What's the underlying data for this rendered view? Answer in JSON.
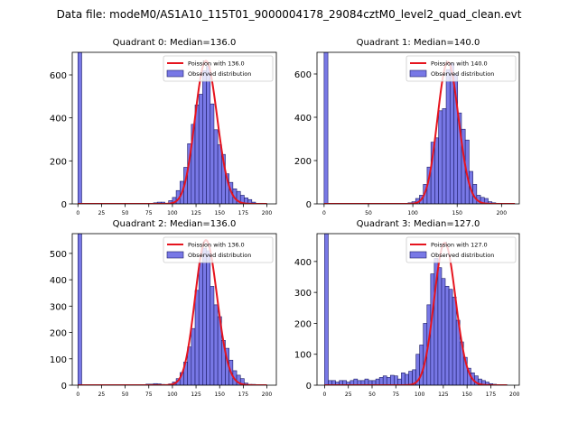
{
  "figure": {
    "suptitle": "Data file: modeM0/AS1A10_115T01_9000004178_29084cztM0_level2_quad_clean.evt"
  },
  "colors": {
    "hist_fill": "#7878e6",
    "hist_edge": "#1a1a66",
    "fit_line": "#e6141e"
  },
  "chart_data": [
    {
      "type": "bar",
      "title": "Quadrant 0: Median=136.0",
      "xlim": [
        -6,
        210
      ],
      "ylim": [
        0,
        705
      ],
      "xticks": [
        0,
        25,
        50,
        75,
        100,
        125,
        150,
        175,
        200
      ],
      "yticks": [
        0,
        200,
        400,
        600
      ],
      "legend": {
        "location": "top-right",
        "line_label": "Poission with 136.0",
        "bar_label": "Observed distribution"
      },
      "series": [
        {
          "name": "Observed distribution",
          "bin_edges": [
            0,
            4,
            8,
            12,
            16,
            20,
            24,
            28,
            32,
            36,
            40,
            44,
            48,
            52,
            56,
            60,
            64,
            68,
            72,
            76,
            80,
            84,
            88,
            92,
            96,
            100,
            104,
            108,
            112,
            116,
            120,
            124,
            128,
            132,
            136,
            140,
            144,
            148,
            152,
            156,
            160,
            164,
            168,
            172,
            176,
            180,
            184,
            188,
            192,
            196,
            200
          ],
          "counts": [
            705,
            0,
            0,
            0,
            0,
            0,
            0,
            0,
            0,
            0,
            0,
            0,
            0,
            0,
            0,
            0,
            0,
            0,
            0,
            0,
            5,
            8,
            8,
            3,
            15,
            30,
            62,
            105,
            170,
            280,
            370,
            460,
            510,
            620,
            640,
            465,
            345,
            275,
            230,
            140,
            100,
            70,
            58,
            40,
            28,
            20,
            8,
            3,
            3,
            1
          ]
        },
        {
          "name": "Poission with 136.0",
          "lambda": 136.0,
          "peak": 665,
          "x_range": [
            0,
            200
          ]
        }
      ]
    },
    {
      "type": "bar",
      "title": "Quadrant 1: Median=140.0",
      "xlim": [
        -8,
        220
      ],
      "ylim": [
        0,
        700
      ],
      "xticks": [
        0,
        50,
        100,
        150,
        200
      ],
      "yticks": [
        0,
        200,
        400,
        600
      ],
      "legend": {
        "location": "top-right",
        "line_label": "Poission with 140.0",
        "bar_label": "Observed distribution"
      },
      "series": [
        {
          "name": "Observed distribution",
          "bin_edges": [
            0,
            4.3,
            8.6,
            12.9,
            17.2,
            21.5,
            25.8,
            30.1,
            34.4,
            38.7,
            43,
            47.3,
            51.6,
            55.9,
            60.2,
            64.5,
            68.8,
            73.1,
            77.4,
            81.7,
            86,
            90.3,
            94.6,
            98.9,
            103.2,
            107.5,
            111.8,
            116.1,
            120.4,
            124.7,
            129,
            133.3,
            137.6,
            141.9,
            146.2,
            150.5,
            154.8,
            159.1,
            163.4,
            167.7,
            172,
            176.3,
            180.6,
            184.9,
            189.2,
            193.5,
            197.8,
            202.1,
            206.4,
            210.7,
            215
          ],
          "counts": [
            700,
            0,
            0,
            0,
            0,
            0,
            0,
            0,
            0,
            0,
            0,
            0,
            0,
            0,
            0,
            0,
            0,
            0,
            0,
            0,
            0,
            2,
            5,
            10,
            25,
            40,
            90,
            170,
            285,
            305,
            430,
            440,
            620,
            650,
            600,
            420,
            345,
            295,
            150,
            90,
            40,
            30,
            25,
            10,
            5,
            3,
            2,
            1,
            1,
            1
          ]
        },
        {
          "name": "Poission with 140.0",
          "lambda": 140.0,
          "peak": 655,
          "x_range": [
            0,
            215
          ]
        }
      ]
    },
    {
      "type": "bar",
      "title": "Quadrant 2: Median=136.0",
      "xlim": [
        -6,
        210
      ],
      "ylim": [
        0,
        575
      ],
      "xticks": [
        0,
        25,
        50,
        75,
        100,
        125,
        150,
        175,
        200
      ],
      "yticks": [
        0,
        100,
        200,
        300,
        400,
        500
      ],
      "legend": {
        "location": "top-right",
        "line_label": "Poission with 136.0",
        "bar_label": "Observed distribution"
      },
      "series": [
        {
          "name": "Observed distribution",
          "bin_edges": [
            0,
            4,
            8,
            12,
            16,
            20,
            24,
            28,
            32,
            36,
            40,
            44,
            48,
            52,
            56,
            60,
            64,
            68,
            72,
            76,
            80,
            84,
            88,
            92,
            96,
            100,
            104,
            108,
            112,
            116,
            120,
            124,
            128,
            132,
            136,
            140,
            144,
            148,
            152,
            156,
            160,
            164,
            168,
            172,
            176,
            180,
            184,
            188,
            192,
            196,
            200
          ],
          "counts": [
            575,
            0,
            0,
            0,
            0,
            0,
            0,
            0,
            0,
            0,
            0,
            0,
            0,
            0,
            0,
            0,
            0,
            0,
            4,
            4,
            6,
            5,
            3,
            2,
            5,
            12,
            25,
            48,
            88,
            145,
            215,
            360,
            465,
            520,
            510,
            375,
            305,
            260,
            170,
            140,
            95,
            55,
            38,
            25,
            8,
            3,
            3,
            1,
            1,
            0
          ]
        },
        {
          "name": "Poission with 136.0",
          "lambda": 136.0,
          "peak": 550,
          "x_range": [
            0,
            200
          ]
        }
      ]
    },
    {
      "type": "bar",
      "title": "Quadrant 3: Median=127.0",
      "xlim": [
        -8,
        205
      ],
      "ylim": [
        0,
        490
      ],
      "xticks": [
        0,
        25,
        50,
        75,
        100,
        125,
        150,
        175,
        200
      ],
      "yticks": [
        0,
        100,
        200,
        300,
        400
      ],
      "legend": {
        "location": "top-right",
        "line_label": "Poission with 127.0",
        "bar_label": "Observed distribution"
      },
      "series": [
        {
          "name": "Observed distribution",
          "bin_edges": [
            0,
            3.85,
            7.7,
            11.55,
            15.4,
            19.25,
            23.1,
            26.95,
            30.8,
            34.65,
            38.5,
            42.35,
            46.2,
            50.05,
            53.9,
            57.75,
            61.6,
            65.45,
            69.3,
            73.15,
            77,
            80.85,
            84.7,
            88.55,
            92.4,
            96.25,
            100.1,
            103.95,
            107.8,
            111.65,
            115.5,
            119.35,
            123.2,
            127.05,
            130.9,
            134.75,
            138.6,
            142.45,
            146.3,
            150.15,
            154,
            157.85,
            161.7,
            165.55,
            169.4,
            173.25,
            177.1,
            180.95,
            184.8,
            188.65,
            192.5
          ],
          "counts": [
            490,
            15,
            15,
            10,
            15,
            15,
            10,
            15,
            20,
            15,
            15,
            20,
            15,
            15,
            20,
            25,
            30,
            25,
            32,
            30,
            20,
            40,
            35,
            45,
            50,
            100,
            130,
            200,
            260,
            360,
            410,
            380,
            345,
            320,
            310,
            285,
            210,
            140,
            90,
            55,
            40,
            30,
            20,
            15,
            10,
            5,
            3,
            2,
            1,
            1
          ]
        },
        {
          "name": "Poission with 127.0",
          "lambda": 127.0,
          "peak": 460,
          "x_range": [
            0,
            192
          ]
        }
      ]
    }
  ]
}
